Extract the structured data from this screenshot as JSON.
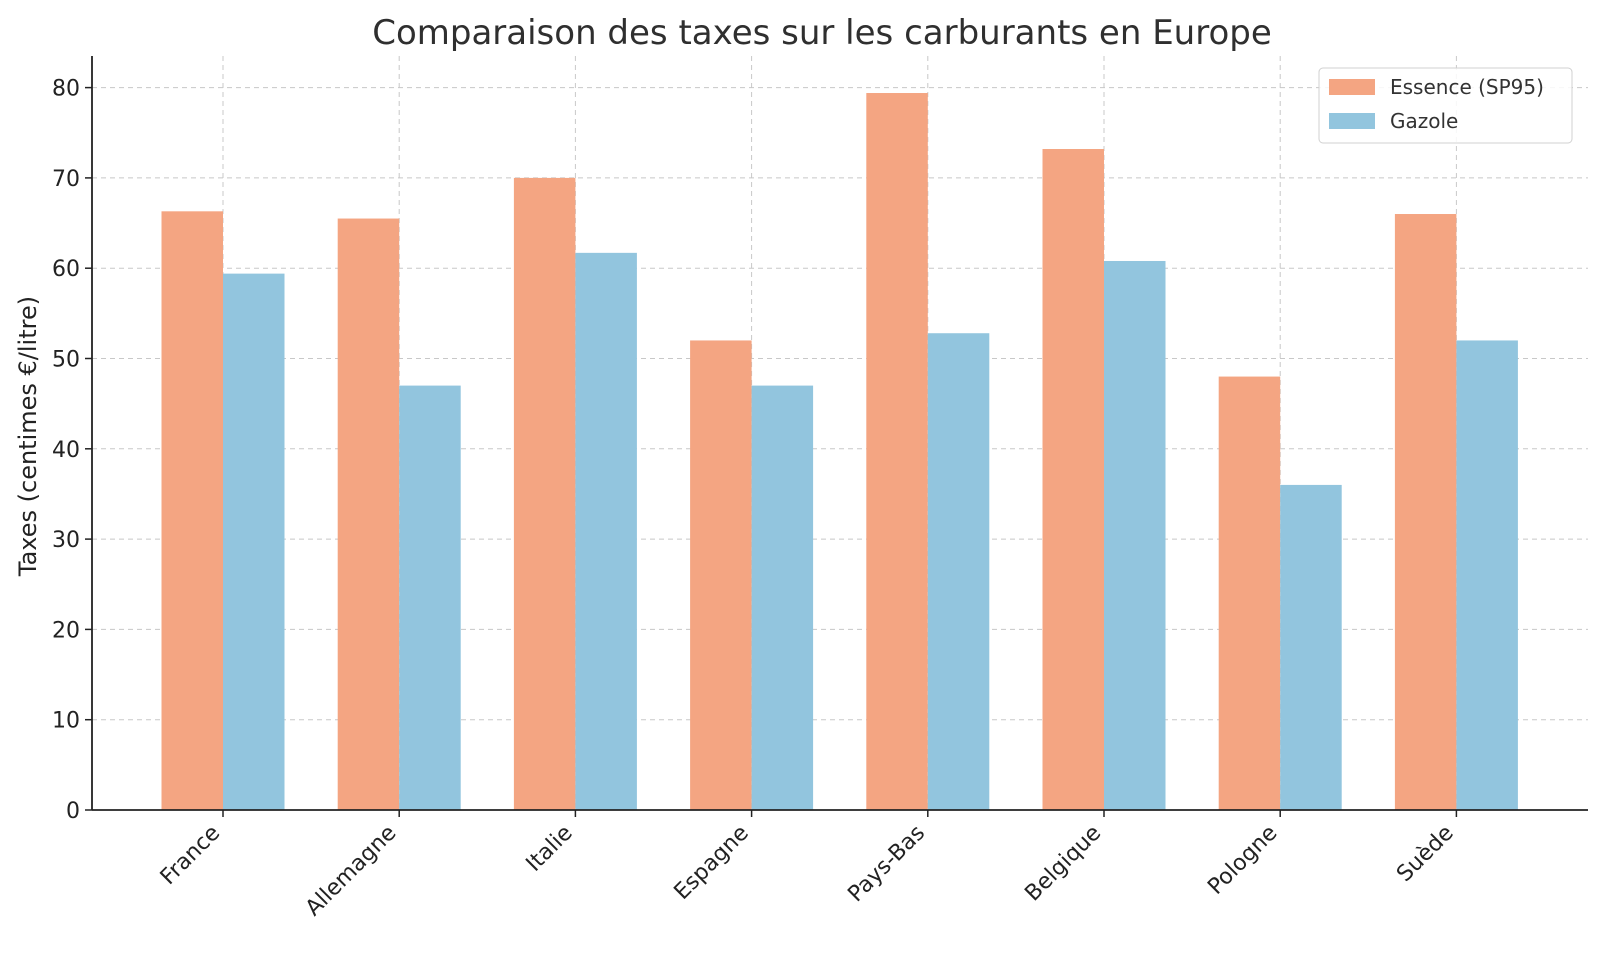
{
  "chart_data": {
    "type": "bar",
    "title": "Comparaison des taxes sur les carburants en Europe",
    "xlabel": "",
    "ylabel": "Taxes (centimes €/litre)",
    "categories": [
      "France",
      "Allemagne",
      "Italie",
      "Espagne",
      "Pays-Bas",
      "Belgique",
      "Pologne",
      "Suède"
    ],
    "series": [
      {
        "name": "Essence (SP95)",
        "color": "#f4a582",
        "values": [
          66.3,
          65.5,
          70.0,
          52.0,
          79.4,
          73.2,
          48.0,
          66.0
        ]
      },
      {
        "name": "Gazole",
        "color": "#92c5de",
        "values": [
          59.4,
          47.0,
          61.7,
          47.0,
          52.8,
          60.8,
          36.0,
          52.0
        ]
      }
    ],
    "ylim": [
      0,
      83.5
    ],
    "yticks": [
      0,
      10,
      20,
      30,
      40,
      50,
      60,
      70,
      80
    ],
    "grid": true,
    "legend_position": "top-right"
  }
}
